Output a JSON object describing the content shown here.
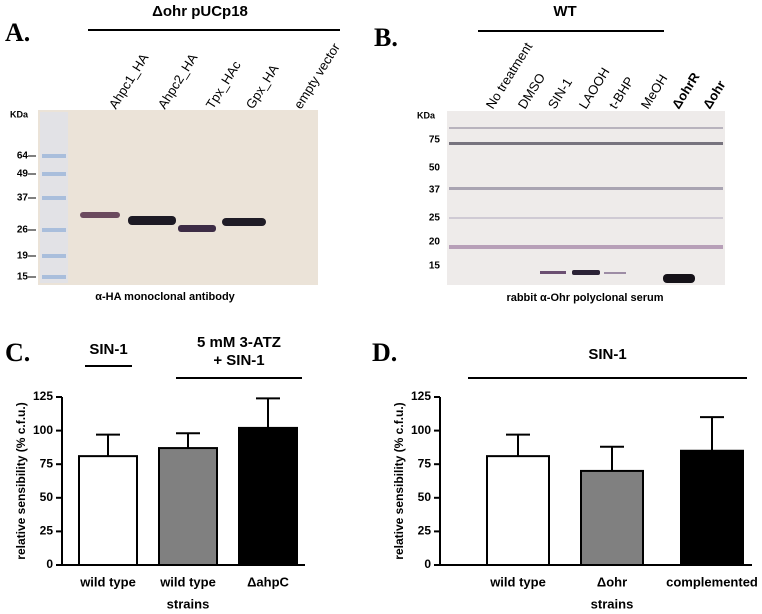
{
  "panel_a": {
    "label": "A.",
    "header": "Δohr pUCp18",
    "lanes": [
      "Ahpc1_HA",
      "Ahpc2_HA",
      "Tpx_HAc",
      "Gpx_HA",
      "empty vector"
    ],
    "unit": "KDa",
    "markers": [
      64,
      49,
      37,
      26,
      19,
      15
    ],
    "caption": "α-HA monoclonal antibody"
  },
  "panel_b": {
    "label": "B.",
    "header": "WT",
    "lanes": [
      "No treatment",
      "DMSO",
      "SIN-1",
      "LAOOH",
      "t-BHP",
      "MeOH",
      "ΔohrR",
      "Δohr"
    ],
    "unit": "KDa",
    "markers": [
      75,
      50,
      37,
      25,
      20,
      15
    ],
    "caption": "rabbit α-Ohr polyclonal serum"
  },
  "chart_data": [
    {
      "type": "bar",
      "panel_label": "C.",
      "ylabel": "relative sensibility (% c.f.u.)",
      "xlabel": "strains",
      "annotations": [
        {
          "lines": [
            "SIN-1"
          ]
        },
        {
          "lines": [
            "5 mM 3-ATZ",
            "+ SIN-1"
          ]
        }
      ],
      "categories": [
        "wild type",
        "wild type",
        "ΔahpC"
      ],
      "values": [
        81,
        87,
        102
      ],
      "errors": [
        16,
        11,
        22
      ],
      "colors": [
        "#ffffff",
        "#808080",
        "#000000"
      ],
      "ylim": [
        0,
        125
      ],
      "yticks": [
        0,
        25,
        50,
        75,
        100,
        125
      ]
    },
    {
      "type": "bar",
      "panel_label": "D.",
      "ylabel": "relative sensibility (% c.f.u.)",
      "xlabel": "strains",
      "annotations": [
        {
          "lines": [
            "SIN-1"
          ]
        }
      ],
      "categories": [
        "wild type",
        "Δohr",
        "complemented"
      ],
      "values": [
        81,
        70,
        85
      ],
      "errors": [
        16,
        18,
        25
      ],
      "colors": [
        "#ffffff",
        "#808080",
        "#000000"
      ],
      "ylim": [
        0,
        125
      ],
      "yticks": [
        0,
        25,
        50,
        75,
        100,
        125
      ]
    }
  ]
}
